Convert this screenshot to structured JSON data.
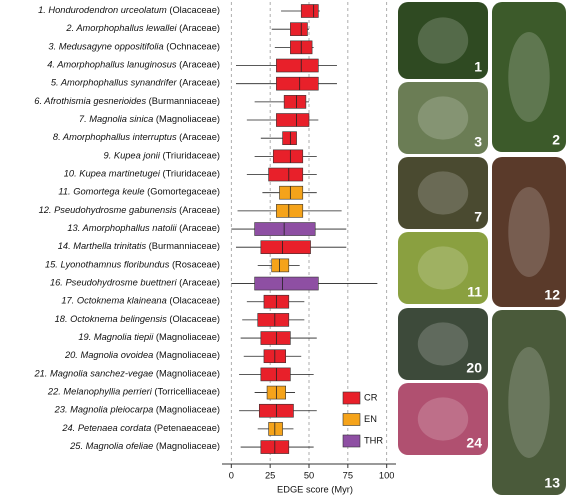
{
  "chart_data": {
    "type": "boxplot",
    "xlabel": "EDGE score (Myr)",
    "xlim": [
      -6,
      106
    ],
    "xticks": [
      0,
      25,
      50,
      75,
      100
    ],
    "grid": true,
    "categories": [
      "1. Hondurodendron urceolatum",
      "2. Amorphophallus lewallei",
      "3. Medusagyne oppositifolia",
      "4. Amorphophallus lanuginosus",
      "5. Amorphophallus synandrifer",
      "6. Afrothismia gesnerioides",
      "7. Magnolia sinica",
      "8. Amorphophallus interruptus",
      "9. Kupea jonii",
      "10. Kupea martinetugei",
      "11. Gomortega keule",
      "12. Pseudohydrosme gabunensis",
      "13. Amorphophallus natolii",
      "14. Marthella trinitatis",
      "15. Lyonothamnus floribundus",
      "16. Pseudohydrosme buettneri",
      "17. Octoknema klaineana",
      "18. Octoknema belingensis",
      "19. Magnolia tiepii",
      "20. Magnolia ovoidea",
      "21. Magnolia sanchez-vegae",
      "22. Melanophyllia perrieri",
      "23. Magnolia pleiocarpa",
      "24. Petenaea cordata",
      "25. Magnolia ofeliae"
    ],
    "families": [
      "(Olacaceae)",
      "(Araceae)",
      "(Ochnaceae)",
      "(Araceae)",
      "(Araceae)",
      "(Burmanniaceae)",
      "(Magnoliaceae)",
      "(Araceae)",
      "(Triuridaceae)",
      "(Triuridaceae)",
      "(Gomortegaceae)",
      "(Araceae)",
      "(Araceae)",
      "(Burmanniaceae)",
      "(Rosaceae)",
      "(Araceae)",
      "(Olacaceae)",
      "(Olacaceae)",
      "(Magnoliaceae)",
      "(Magnoliaceae)",
      "(Magnoliaceae)",
      "(Torricelliaceae)",
      "(Magnoliaceae)",
      "(Petenaeaceae)",
      "(Magnoliaceae)"
    ],
    "status": [
      "CR",
      "CR",
      "CR",
      "CR",
      "CR",
      "CR",
      "CR",
      "CR",
      "CR",
      "CR",
      "EN",
      "EN",
      "THR",
      "CR",
      "EN",
      "THR",
      "CR",
      "CR",
      "CR",
      "CR",
      "CR",
      "EN",
      "CR",
      "EN",
      "CR"
    ],
    "low": [
      32,
      26,
      28,
      3,
      3,
      15,
      10,
      19,
      15,
      10,
      20,
      4,
      0,
      3,
      17,
      0,
      10,
      7,
      6,
      8,
      5,
      15,
      5,
      17,
      6
    ],
    "q1": [
      45,
      38,
      38,
      29,
      29,
      34,
      29,
      33,
      27,
      24,
      31,
      29,
      15,
      19,
      26,
      15,
      21,
      17,
      19,
      21,
      19,
      23,
      18,
      24,
      19
    ],
    "median": [
      53,
      45,
      45,
      45,
      44,
      42,
      42,
      38,
      38,
      37,
      38,
      37,
      34,
      33,
      31,
      33,
      29,
      28,
      29,
      28,
      29,
      29,
      29,
      28,
      28
    ],
    "q3": [
      56,
      49,
      52,
      56,
      56,
      48,
      50,
      42,
      46,
      46,
      46,
      46,
      54,
      51,
      37,
      56,
      37,
      37,
      38,
      35,
      38,
      35,
      40,
      33,
      37
    ],
    "high": [
      57,
      50,
      53,
      68,
      68,
      50,
      56,
      42,
      55,
      55,
      55,
      71,
      74,
      74,
      44,
      94,
      47,
      47,
      55,
      45,
      53,
      41,
      55,
      40,
      53
    ],
    "legend": [
      {
        "name": "CR",
        "color": "#e8202a"
      },
      {
        "name": "EN",
        "color": "#f5a31a"
      },
      {
        "name": "THR",
        "color": "#8e4fa3"
      }
    ]
  },
  "photos": [
    "1",
    "2",
    "3",
    "7",
    "12",
    "11",
    "20",
    "13",
    "24"
  ]
}
